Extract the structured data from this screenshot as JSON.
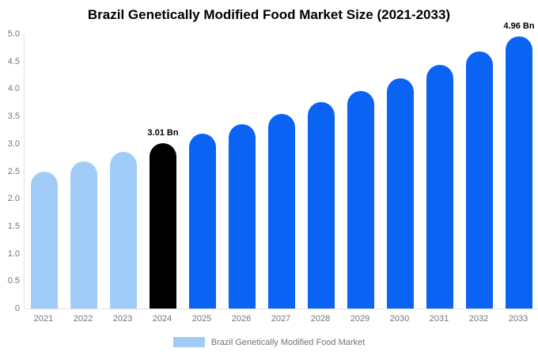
{
  "chart_data": {
    "type": "bar",
    "title": "Brazil Genetically Modified Food Market Size (2021-2033)",
    "categories": [
      "2021",
      "2022",
      "2023",
      "2024",
      "2025",
      "2026",
      "2027",
      "2028",
      "2029",
      "2030",
      "2031",
      "2032",
      "2033"
    ],
    "values": [
      2.5,
      2.68,
      2.85,
      3.01,
      3.18,
      3.36,
      3.55,
      3.76,
      3.97,
      4.2,
      4.44,
      4.69,
      4.96
    ],
    "unit": "Bn",
    "xlabel": "",
    "ylabel": "",
    "ylim": [
      0,
      5
    ],
    "ytick_labels": [
      "0",
      "0.5",
      "1.0",
      "1.5",
      "2.0",
      "2.5",
      "3.0",
      "3.5",
      "4.0",
      "4.5",
      "5.0"
    ],
    "grid": false,
    "bar_colors": [
      "#a2ccf8",
      "#a2ccf8",
      "#a2ccf8",
      "#000000",
      "#0b63f3",
      "#0b63f3",
      "#0b63f3",
      "#0b63f3",
      "#0b63f3",
      "#0b63f3",
      "#0b63f3",
      "#0b63f3",
      "#0b63f3"
    ],
    "annotations": [
      {
        "index": 3,
        "text": "3.01 Bn"
      },
      {
        "index": 12,
        "text": "4.96 Bn"
      }
    ],
    "legend": {
      "label": "Brazil Genetically Modified Food Market",
      "position": "bottom",
      "swatch_color": "#a2ccf8"
    },
    "colors": {
      "historical_bar": "#a2ccf8",
      "highlight_bar": "#000000",
      "forecast_bar": "#0b63f3",
      "axis_text": "#757575",
      "axis_line": "#e2e2e2",
      "title_text": "#000000",
      "background": "#ffffff"
    }
  }
}
